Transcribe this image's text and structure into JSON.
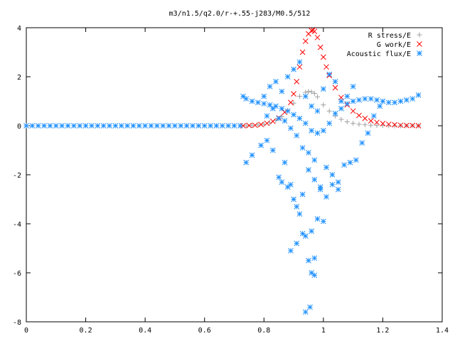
{
  "chart_data": {
    "type": "scatter",
    "title": "m3/n1.5/q2.0/r-+.55-j283/M0.5/512",
    "xlabel": "",
    "ylabel": "",
    "xlim": [
      0,
      1.4
    ],
    "ylim": [
      -8,
      4
    ],
    "xticks": [
      "0",
      "0.2",
      "0.4",
      "0.6",
      "0.8",
      "1",
      "1.2",
      "1.4"
    ],
    "yticks": [
      "4",
      "2",
      "0",
      "-2",
      "-4",
      "-6",
      "-8"
    ],
    "legend_position": "top-right",
    "grid": false,
    "series": [
      {
        "name": "R stress/E",
        "color": "#a0a0a0",
        "marker": "plus",
        "x": [
          0.74,
          0.76,
          0.78,
          0.8,
          0.82,
          0.84,
          0.86,
          0.88,
          0.9,
          0.92,
          0.94,
          0.95,
          0.96,
          0.97,
          0.98,
          1.0,
          1.02,
          1.04,
          1.06,
          1.08,
          1.1,
          1.12,
          1.14,
          1.16,
          1.18,
          1.2,
          1.22,
          1.24,
          1.26,
          1.28,
          1.3,
          1.32
        ],
        "y": [
          0.0,
          0.01,
          0.03,
          0.06,
          0.12,
          0.22,
          0.38,
          0.62,
          0.92,
          1.2,
          1.36,
          1.4,
          1.38,
          1.32,
          1.18,
          0.85,
          0.6,
          0.4,
          0.26,
          0.16,
          0.1,
          0.06,
          0.04,
          0.02,
          0.01,
          0.01,
          0.0,
          0.0,
          0.0,
          0.0,
          0.0,
          0.0
        ]
      },
      {
        "name": "G work/E",
        "color": "#ff0000",
        "marker": "cross",
        "x": [
          0.73,
          0.75,
          0.77,
          0.79,
          0.81,
          0.83,
          0.85,
          0.87,
          0.89,
          0.9,
          0.91,
          0.92,
          0.93,
          0.94,
          0.95,
          0.96,
          0.965,
          0.97,
          0.98,
          0.99,
          1.0,
          1.01,
          1.02,
          1.04,
          1.06,
          1.08,
          1.1,
          1.12,
          1.14,
          1.16,
          1.18,
          1.2,
          1.22,
          1.24,
          1.26,
          1.28,
          1.3,
          1.32
        ],
        "y": [
          0.0,
          0.01,
          0.02,
          0.05,
          0.1,
          0.18,
          0.32,
          0.55,
          0.95,
          1.3,
          1.8,
          2.4,
          3.0,
          3.45,
          3.75,
          3.88,
          3.9,
          3.85,
          3.6,
          3.2,
          2.8,
          2.4,
          2.05,
          1.55,
          1.15,
          0.85,
          0.6,
          0.42,
          0.3,
          0.2,
          0.14,
          0.09,
          0.06,
          0.04,
          0.02,
          0.01,
          0.01,
          0.0
        ]
      },
      {
        "name": "Acoustic flux/E",
        "color": "#1e90ff",
        "marker": "star",
        "x": [
          0.73,
          0.74,
          0.76,
          0.78,
          0.8,
          0.82,
          0.84,
          0.86,
          0.88,
          0.9,
          0.92,
          0.94,
          0.96,
          0.98,
          1.0,
          1.02,
          1.04,
          1.06,
          1.08,
          1.1,
          1.12,
          1.14,
          1.16,
          1.18,
          1.2,
          1.22,
          1.24,
          1.26,
          1.28,
          1.3,
          1.32,
          0.74,
          0.76,
          0.79,
          0.81,
          0.83,
          0.85,
          0.87,
          0.89,
          0.91,
          0.93,
          0.95,
          0.97,
          0.99,
          1.01,
          1.03,
          1.05,
          1.07,
          1.09,
          1.11,
          1.13,
          1.15,
          1.17,
          1.19,
          0.8,
          0.82,
          0.84,
          0.86,
          0.88,
          0.9,
          0.92,
          0.94,
          0.96,
          0.98,
          1.0,
          1.02,
          1.04,
          1.06,
          1.08,
          1.1,
          0.81,
          0.83,
          0.85,
          0.87,
          0.89,
          0.91,
          0.93,
          0.95,
          0.97,
          0.99,
          1.01,
          1.03,
          1.05,
          0.86,
          0.88,
          0.9,
          0.92,
          0.94,
          0.96,
          0.98,
          1.0,
          0.89,
          0.91,
          0.93,
          0.95,
          0.97,
          0.94,
          0.955,
          0.96,
          0.97
        ],
        "y": [
          1.2,
          1.1,
          1.0,
          0.95,
          0.9,
          0.85,
          0.8,
          0.7,
          0.6,
          0.45,
          0.3,
          0.1,
          -0.2,
          -0.3,
          -0.2,
          0.1,
          0.5,
          0.7,
          0.9,
          1.0,
          1.05,
          1.1,
          1.1,
          1.05,
          1.0,
          0.95,
          0.95,
          1.0,
          1.05,
          1.1,
          1.25,
          -1.5,
          -1.2,
          -0.8,
          -0.6,
          -1.0,
          -2.1,
          -1.5,
          -2.4,
          -3.3,
          -2.8,
          -1.8,
          -2.2,
          -2.5,
          -1.7,
          -2.0,
          -2.3,
          -1.6,
          -1.5,
          -1.4,
          -0.7,
          -0.3,
          0.4,
          0.8,
          1.2,
          1.6,
          1.8,
          1.4,
          2.0,
          2.3,
          2.6,
          1.2,
          0.8,
          0.6,
          1.5,
          2.1,
          1.8,
          1.0,
          1.2,
          1.6,
          0.4,
          0.7,
          0.3,
          0.2,
          -0.1,
          -0.4,
          -0.9,
          -1.1,
          -1.4,
          -2.6,
          -2.9,
          -2.4,
          -2.6,
          -2.3,
          -2.5,
          -3.0,
          -3.6,
          -4.5,
          -4.3,
          -3.8,
          -3.9,
          -5.1,
          -4.8,
          -4.4,
          -5.5,
          -6.1,
          -7.6,
          -7.4,
          -6.0,
          -5.4
        ]
      },
      {
        "name": "",
        "color": "#1e90ff",
        "marker": "star",
        "x": [
          0.0,
          0.02,
          0.04,
          0.06,
          0.08,
          0.1,
          0.12,
          0.14,
          0.16,
          0.18,
          0.2,
          0.22,
          0.24,
          0.26,
          0.28,
          0.3,
          0.32,
          0.34,
          0.36,
          0.38,
          0.4,
          0.42,
          0.44,
          0.46,
          0.48,
          0.5,
          0.52,
          0.54,
          0.56,
          0.58,
          0.6,
          0.62,
          0.64,
          0.66,
          0.68,
          0.7,
          0.72
        ],
        "y": [
          0,
          0,
          0,
          0,
          0,
          0,
          0,
          0,
          0,
          0,
          0,
          0,
          0,
          0,
          0,
          0,
          0,
          0,
          0,
          0,
          0,
          0,
          0,
          0,
          0,
          0,
          0,
          0,
          0,
          0,
          0,
          0,
          0,
          0,
          0,
          0,
          0
        ]
      }
    ]
  }
}
